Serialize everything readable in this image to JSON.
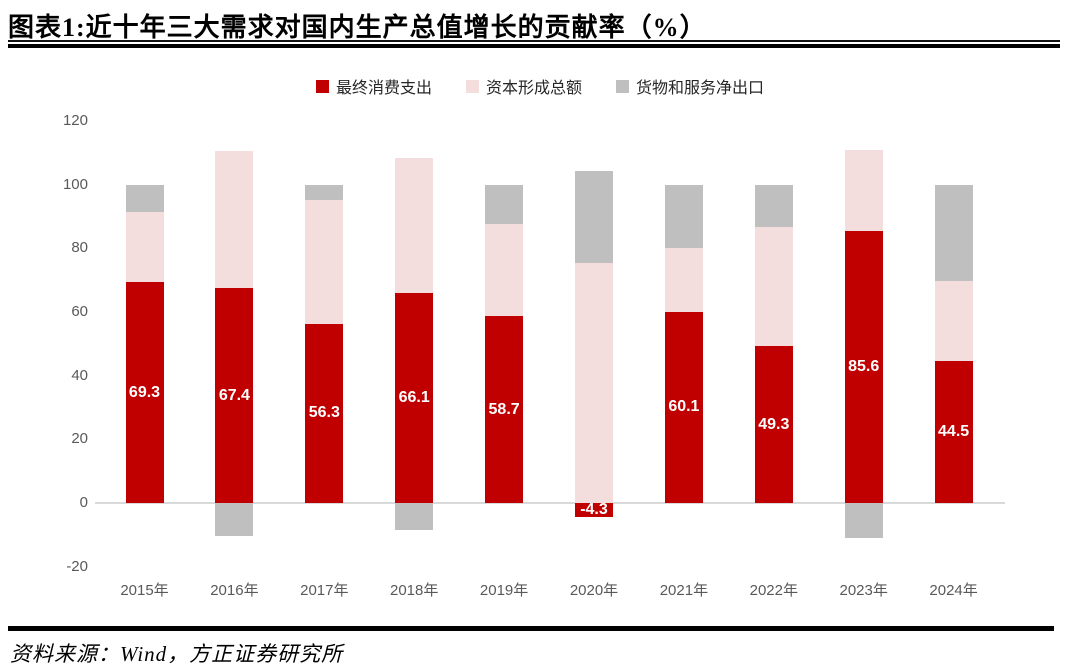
{
  "page": {
    "title": "图表1:近十年三大需求对国内生产总值增长的贡献率（%）",
    "source": "资料来源：Wind，方正证券研究所"
  },
  "chart_data": {
    "type": "bar",
    "stacked": true,
    "title": "图表1:近十年三大需求对国内生产总值增长的贡献率（%）",
    "categories": [
      "2015年",
      "2016年",
      "2017年",
      "2018年",
      "2019年",
      "2020年",
      "2021年",
      "2022年",
      "2023年",
      "2024年"
    ],
    "series": [
      {
        "name": "最终消费支出",
        "color": "#c00000",
        "values": [
          69.3,
          67.4,
          56.3,
          66.1,
          58.7,
          -4.3,
          60.1,
          49.3,
          85.6,
          44.5
        ]
      },
      {
        "name": "资本形成总额",
        "color": "#f3dedd",
        "values": [
          22.0,
          43.1,
          39.0,
          42.4,
          28.9,
          75.3,
          19.9,
          37.3,
          25.4,
          25.2
        ]
      },
      {
        "name": "货物和服务净出口",
        "color": "#bfbfbf",
        "values": [
          8.7,
          -10.5,
          4.7,
          -8.5,
          12.4,
          29.0,
          20.0,
          13.4,
          -11.0,
          30.3
        ]
      }
    ],
    "data_labels": [
      "69.3",
      "67.4",
      "56.3",
      "66.1",
      "58.7",
      "-4.3",
      "60.1",
      "49.3",
      "85.6",
      "44.5"
    ],
    "data_label_series": "最终消费支出",
    "y_ticks": [
      120,
      100,
      80,
      60,
      40,
      20,
      0,
      -20
    ],
    "ylim": [
      -20,
      120
    ],
    "xlabel": "",
    "ylabel": "",
    "legend_position": "top",
    "gridlines": false,
    "source": "资料来源：Wind，方正证券研究所"
  }
}
